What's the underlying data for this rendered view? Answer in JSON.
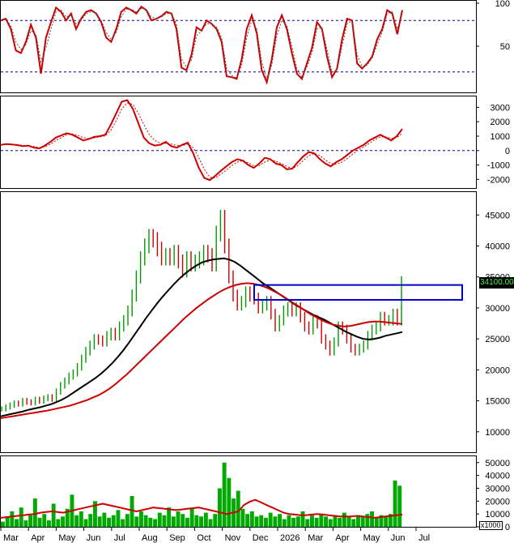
{
  "chart_data": [
    {
      "type": "line",
      "panel": "stochastic",
      "y_ticks": [
        {
          "value": 50,
          "label": "50"
        },
        {
          "value": 100,
          "label": "100"
        }
      ],
      "ylim": [
        0,
        100
      ],
      "reference_lines": [
        80,
        20
      ],
      "series": [
        {
          "color": "#cc0000",
          "values": [
            80,
            82,
            70,
            45,
            42,
            55,
            75,
            60,
            18,
            60,
            78,
            95,
            90,
            80,
            88,
            70,
            82,
            90,
            92,
            88,
            78,
            60,
            55,
            70,
            90,
            95,
            92,
            88,
            96,
            92,
            80,
            82,
            85,
            90,
            88,
            70,
            25,
            22,
            40,
            72,
            68,
            80,
            76,
            70,
            55,
            15,
            14,
            12,
            35,
            70,
            86,
            65,
            22,
            8,
            35,
            72,
            86,
            70,
            42,
            18,
            12,
            30,
            48,
            78,
            70,
            38,
            14,
            24,
            58,
            82,
            80,
            30,
            24,
            30,
            38,
            58,
            70,
            92,
            88,
            64,
            92
          ]
        },
        {
          "color": "#555555",
          "dashed": true,
          "values": [
            80,
            81,
            74,
            55,
            46,
            52,
            68,
            64,
            32,
            48,
            70,
            90,
            92,
            84,
            86,
            76,
            80,
            88,
            90,
            89,
            80,
            66,
            58,
            66,
            84,
            93,
            93,
            90,
            94,
            93,
            84,
            82,
            84,
            88,
            88,
            76,
            35,
            26,
            34,
            62,
            68,
            76,
            76,
            72,
            60,
            24,
            16,
            13,
            28,
            60,
            80,
            70,
            32,
            12,
            28,
            62,
            80,
            74,
            50,
            24,
            14,
            26,
            42,
            70,
            72,
            46,
            20,
            22,
            50,
            76,
            80,
            40,
            26,
            28,
            36,
            52,
            66,
            88,
            90,
            70,
            88
          ]
        }
      ]
    },
    {
      "type": "line",
      "panel": "momentum",
      "y_ticks": [
        {
          "value": 3000,
          "label": "3000"
        },
        {
          "value": 2000,
          "label": "2000"
        },
        {
          "value": 1000,
          "label": "1000"
        },
        {
          "value": 0,
          "label": "0"
        },
        {
          "value": -1000,
          "label": "-1000"
        },
        {
          "value": -2000,
          "label": "-2000"
        }
      ],
      "ylim": [
        -2600,
        3700
      ],
      "reference_lines": [
        0
      ],
      "series": [
        {
          "color": "#cc0000",
          "values": [
            400,
            450,
            420,
            380,
            300,
            350,
            200,
            150,
            350,
            600,
            900,
            1050,
            1200,
            1100,
            900,
            700,
            800,
            950,
            1000,
            1100,
            1800,
            2600,
            3400,
            3500,
            2900,
            1900,
            900,
            500,
            350,
            400,
            600,
            300,
            200,
            400,
            550,
            -200,
            -1200,
            -1900,
            -2050,
            -1750,
            -1400,
            -1100,
            -800,
            -600,
            -700,
            -1000,
            -1200,
            -900,
            -500,
            -600,
            -900,
            -1000,
            -1300,
            -1250,
            -800,
            -400,
            -100,
            -200,
            -600,
            -900,
            -1100,
            -800,
            -600,
            -300,
            0,
            200,
            400,
            700,
            900,
            1100,
            900,
            700,
            1000,
            1500
          ]
        },
        {
          "color": "#cc0000",
          "dashed": true,
          "values": [
            400,
            430,
            440,
            410,
            360,
            340,
            280,
            200,
            250,
            450,
            700,
            900,
            1100,
            1150,
            1050,
            900,
            820,
            880,
            950,
            1020,
            1400,
            2100,
            2900,
            3300,
            3200,
            2600,
            1800,
            1100,
            700,
            500,
            500,
            450,
            350,
            350,
            450,
            200,
            -500,
            -1300,
            -1850,
            -1900,
            -1650,
            -1350,
            -1050,
            -800,
            -700,
            -850,
            -1050,
            -1050,
            -800,
            -650,
            -750,
            -900,
            -1100,
            -1250,
            -1050,
            -700,
            -350,
            -200,
            -350,
            -650,
            -900,
            -950,
            -800,
            -550,
            -250,
            50,
            250,
            500,
            750,
            950,
            950,
            850,
            900,
            1200
          ]
        }
      ]
    },
    {
      "type": "line",
      "panel": "price",
      "title": "",
      "y_ticks": [
        {
          "value": 45000,
          "label": "45000"
        },
        {
          "value": 40000,
          "label": "40000"
        },
        {
          "value": 35000,
          "label": "35000"
        },
        {
          "value": 30000,
          "label": "30000"
        },
        {
          "value": 25000,
          "label": "25000"
        },
        {
          "value": 20000,
          "label": "20000"
        },
        {
          "value": 15000,
          "label": "15000"
        },
        {
          "value": 10000,
          "label": "10000"
        }
      ],
      "ylim": [
        6700,
        48700
      ],
      "x_labels": [
        "Mar",
        "Apr",
        "May",
        "Jun",
        "Jul",
        "Aug",
        "Sep",
        "Oct",
        "Nov",
        "Dec",
        "2026",
        "Mar",
        "Apr",
        "May",
        "Jun",
        "Jul"
      ],
      "last_price_label": "34100.00",
      "series": [
        {
          "name": "",
          "kind": "close",
          "color": "#009900",
          "values": [
            13700,
            14000,
            14300,
            14600,
            14500,
            15000,
            14800,
            14700,
            15200,
            15000,
            15400,
            15600,
            15300,
            16500,
            17500,
            18200,
            19000,
            19500,
            20500,
            21800,
            23000,
            24000,
            25000,
            24800,
            24500,
            25500,
            26000,
            25500,
            27000,
            28000,
            29500,
            32000,
            35000,
            38000,
            40000,
            41500,
            41000,
            39500,
            38000,
            38500,
            38000,
            39000,
            37500,
            36000,
            38000,
            37000,
            37500,
            38000,
            39000,
            38500,
            37000,
            42000,
            44500,
            40000,
            35000,
            32000,
            30500,
            31000,
            32500,
            32000,
            31500,
            30000,
            30500,
            31000,
            29000,
            27000,
            28000,
            29500,
            30000,
            29500,
            30000,
            28500,
            27000,
            26500,
            28000,
            27500,
            25000,
            24000,
            23000,
            24500,
            27000,
            26500,
            25000,
            23500,
            23000,
            23500,
            24000,
            25500,
            26500,
            27000,
            28500,
            28000,
            28000,
            29000,
            28000,
            34100
          ]
        },
        {
          "name": "",
          "kind": "ma",
          "color": "#000000",
          "width": 2,
          "values": [
            12500,
            12700,
            12900,
            13100,
            13300,
            13550,
            13750,
            13950,
            14200,
            14450,
            14800,
            15200,
            15700,
            16300,
            16900,
            17500,
            18100,
            18700,
            19400,
            20200,
            21100,
            22100,
            23200,
            24400,
            25700,
            27000,
            28300,
            29500,
            30700,
            31800,
            32800,
            33800,
            34700,
            35500,
            36200,
            36800,
            37300,
            37600,
            37800,
            37900,
            38000,
            37800,
            37400,
            36800,
            36100,
            35400,
            34700,
            34000,
            33400,
            32800,
            32200,
            31600,
            31000,
            30400,
            29900,
            29400,
            28900,
            28500,
            28100,
            27600,
            27100,
            26600,
            26100,
            25700,
            25300,
            25000,
            24900,
            25000,
            25200,
            25500,
            25700,
            25900,
            26100
          ]
        },
        {
          "name": "",
          "kind": "ma",
          "color": "#cc0000",
          "width": 2,
          "values": [
            12200,
            12350,
            12500,
            12650,
            12800,
            12950,
            13100,
            13250,
            13400,
            13600,
            13800,
            14000,
            14200,
            14500,
            14800,
            15100,
            15500,
            15900,
            16400,
            17000,
            17700,
            18500,
            19300,
            20200,
            21100,
            22000,
            22900,
            23800,
            24700,
            25600,
            26500,
            27400,
            28300,
            29100,
            29900,
            30600,
            31300,
            31900,
            32500,
            33000,
            33400,
            33700,
            33900,
            34000,
            33900,
            33700,
            33400,
            33000,
            32500,
            32000,
            31400,
            30800,
            30200,
            29600,
            29000,
            28500,
            28000,
            27600,
            27300,
            27100,
            27000,
            27100,
            27300,
            27500,
            27700,
            27800,
            27800,
            27700,
            27600,
            27500,
            27400
          ]
        }
      ],
      "annotation_box": {
        "y_low": 31300,
        "y_high": 33700,
        "color": "#0000cc"
      }
    },
    {
      "type": "bar",
      "panel": "volume",
      "y_ticks": [
        {
          "value": 50000,
          "label": "50000"
        },
        {
          "value": 40000,
          "label": "40000"
        },
        {
          "value": 30000,
          "label": "30000"
        },
        {
          "value": 20000,
          "label": "20000"
        },
        {
          "value": 10000,
          "label": "10000"
        },
        {
          "value": 0,
          "label": "0"
        }
      ],
      "ylim": [
        0,
        53000
      ],
      "unit_label": "x1000",
      "series": [
        {
          "name": "",
          "color": "#00aa00",
          "values": [
            4000,
            8000,
            12000,
            6000,
            15000,
            5000,
            9000,
            22000,
            7000,
            10000,
            5000,
            18000,
            6000,
            8000,
            14000,
            25000,
            9000,
            12000,
            6000,
            10000,
            20000,
            8000,
            11000,
            7000,
            9000,
            13000,
            6000,
            10000,
            24000,
            8000,
            12000,
            9000,
            7000,
            6000,
            11000,
            9000,
            15000,
            8000,
            12000,
            10000,
            7000,
            14000,
            9000,
            8000,
            11000,
            6000,
            10000,
            30000,
            50000,
            38000,
            22000,
            28000,
            14000,
            10000,
            12000,
            8000,
            9000,
            7000,
            11000,
            8000,
            10000,
            6000,
            9000,
            7000,
            8000,
            12000,
            6000,
            9000,
            7000,
            10000,
            8000,
            6000,
            9000,
            7000,
            11000,
            8000,
            6000,
            9000,
            8000,
            10000,
            12000,
            7000,
            9000,
            8000,
            10000,
            36000,
            32000
          ]
        },
        {
          "name": "",
          "kind": "ma",
          "color": "#cc0000",
          "values": [
            7000,
            7500,
            8000,
            8500,
            9000,
            9500,
            10000,
            11000,
            11500,
            12000,
            11500,
            11000,
            12000,
            13000,
            14000,
            15000,
            16000,
            17000,
            18000,
            17000,
            16000,
            15000,
            14000,
            13000,
            12000,
            13000,
            14000,
            15000,
            14500,
            14000,
            13500,
            13000,
            13500,
            14000,
            14500,
            15000,
            14000,
            13000,
            12000,
            11000,
            10000,
            11000,
            12000,
            17000,
            19500,
            21000,
            19000,
            17000,
            15000,
            13000,
            11000,
            10000,
            9500,
            9000,
            9000,
            9500,
            10000,
            9500,
            9000,
            8500,
            8000,
            8000,
            8000,
            8500,
            8000,
            7500,
            7000,
            7500,
            8000,
            8500,
            9000,
            9500
          ]
        }
      ]
    }
  ]
}
